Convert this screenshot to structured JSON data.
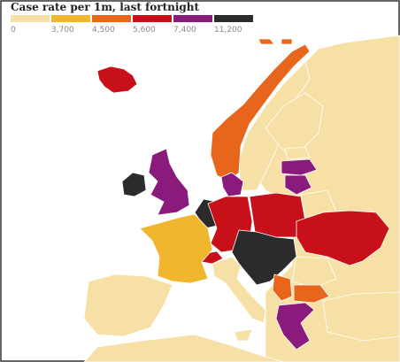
{
  "legend": {
    "title": "Case rate per 1m, last fortnight",
    "items": [
      {
        "label": "0",
        "color": "#f7e0a6"
      },
      {
        "label": "3,700",
        "color": "#f0b62d"
      },
      {
        "label": "4,500",
        "color": "#e8651c"
      },
      {
        "label": "5,600",
        "color": "#c7101a"
      },
      {
        "label": "7,400",
        "color": "#8b1a7d"
      },
      {
        "label": "11,200",
        "color": "#2b2b2b"
      }
    ]
  }
}
